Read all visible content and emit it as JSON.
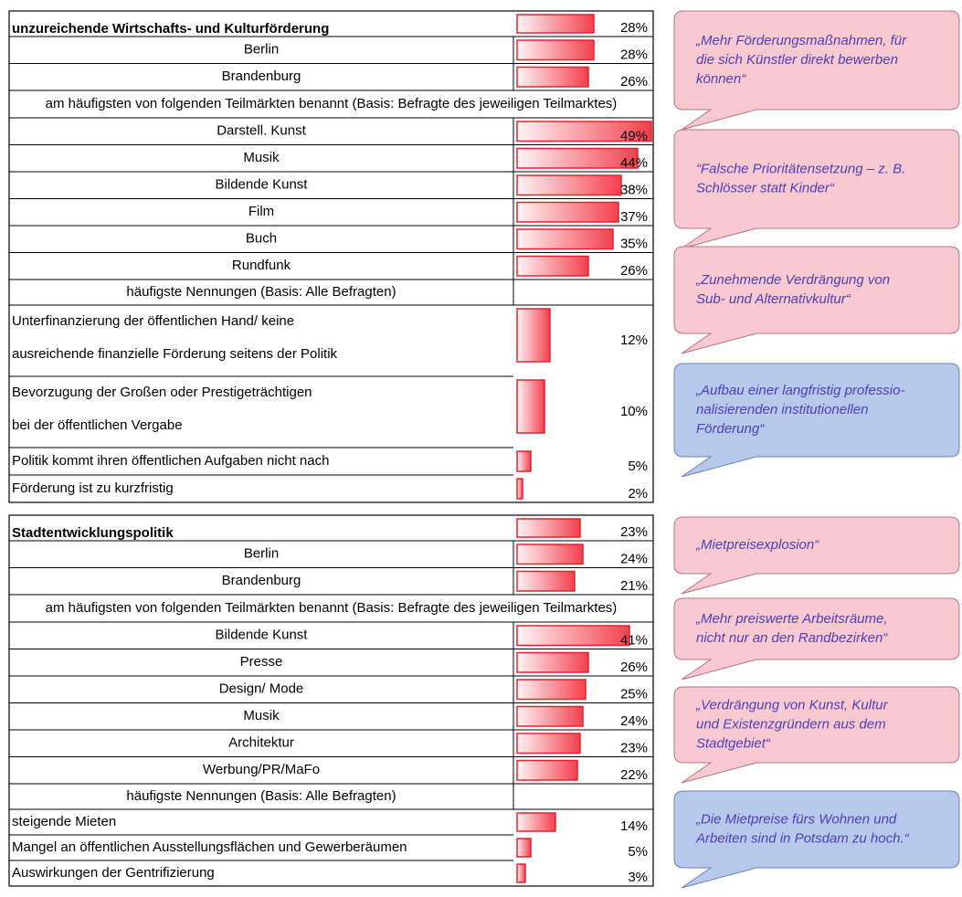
{
  "sections": [
    {
      "title": "unzureichende Wirtschafts- und Kulturförderung",
      "value": 28,
      "value_label": "28%",
      "regions": [
        {
          "name": "Berlin",
          "value": 28,
          "value_label": "28%"
        },
        {
          "name": "Brandenburg",
          "value": 26,
          "value_label": "26%"
        }
      ],
      "submarkets_header": "am häufigsten von folgenden Teilmärkten benannt (Basis: Befragte des jeweiligen Teilmarktes)",
      "submarkets": [
        {
          "name": "Darstell. Kunst",
          "value": 49,
          "value_label": "49%"
        },
        {
          "name": "Musik",
          "value": 44,
          "value_label": "44%"
        },
        {
          "name": "Bildende Kunst",
          "value": 38,
          "value_label": "38%"
        },
        {
          "name": "Film",
          "value": 37,
          "value_label": "37%"
        },
        {
          "name": "Buch",
          "value": 35,
          "value_label": "35%"
        },
        {
          "name": "Rundfunk",
          "value": 26,
          "value_label": "26%"
        }
      ],
      "mentions_header": "häufigste Nennungen (Basis: Alle Befragten)",
      "mentions": [
        {
          "lines": [
            "Unterfinanzierung der öffentlichen Hand/ keine",
            "ausreichende finanzielle Förderung seitens der Politik"
          ],
          "value": 12,
          "value_label": "12%"
        },
        {
          "lines": [
            "Bevorzugung der Großen oder Prestigeträchtigen",
            "bei der öffentlichen Vergabe"
          ],
          "value": 10,
          "value_label": "10%"
        },
        {
          "lines": [
            "Politik kommt ihren öffentlichen Aufgaben nicht nach"
          ],
          "value": 5,
          "value_label": "5%"
        },
        {
          "lines": [
            "Förderung ist zu kurzfristig"
          ],
          "value": 2,
          "value_label": "2%"
        }
      ],
      "quotes": [
        {
          "lines": [
            "„Mehr Förderungsmaßnahmen, für",
            "die sich Künstler direkt bewerben",
            "können“"
          ]
        },
        {
          "lines": [
            "“Falsche Prioritätensetzung – z. B.",
            "Schlösser statt Kinder“"
          ]
        },
        {
          "lines": [
            "„Zunehmende Verdrängung von",
            "Sub- und Alternativkultur“"
          ]
        },
        {
          "lines": [
            "„Aufbau einer langfristig professio-",
            "nalisierenden institutionellen",
            "Förderung“"
          ]
        }
      ]
    },
    {
      "title": "Stadtentwicklungspolitik",
      "value": 23,
      "value_label": "23%",
      "regions": [
        {
          "name": "Berlin",
          "value": 24,
          "value_label": "24%"
        },
        {
          "name": "Brandenburg",
          "value": 21,
          "value_label": "21%"
        }
      ],
      "submarkets_header": "am häufigsten von folgenden Teilmärkten benannt (Basis: Befragte des jeweiligen Teilmarktes)",
      "submarkets": [
        {
          "name": "Bildende Kunst",
          "value": 41,
          "value_label": "41%"
        },
        {
          "name": "Presse",
          "value": 26,
          "value_label": "26%"
        },
        {
          "name": "Design/ Mode",
          "value": 25,
          "value_label": "25%"
        },
        {
          "name": "Musik",
          "value": 24,
          "value_label": "24%"
        },
        {
          "name": "Architektur",
          "value": 23,
          "value_label": "23%"
        },
        {
          "name": "Werbung/PR/MaFo",
          "value": 22,
          "value_label": "22%"
        }
      ],
      "mentions_header": "häufigste Nennungen (Basis: Alle Befragten)",
      "mentions": [
        {
          "lines": [
            "steigende Mieten"
          ],
          "value": 14,
          "value_label": "14%"
        },
        {
          "lines": [
            "Mangel an öffentlichen Ausstellungsflächen und Gewerberäumen"
          ],
          "value": 5,
          "value_label": "5%"
        },
        {
          "lines": [
            "Auswirkungen der Gentrifizierung"
          ],
          "value": 3,
          "value_label": "3%"
        }
      ],
      "quotes": [
        {
          "lines": [
            "„Mietpreisexplosion“"
          ]
        },
        {
          "lines": [
            "„Mehr preiswerte Arbeitsräume,",
            "nicht nur an den Randbezirken“"
          ]
        },
        {
          "lines": [
            "„Verdrängung von Kunst, Kultur",
            "und Existenzgründern aus dem",
            "Stadtgebiet“"
          ]
        },
        {
          "lines": [
            "„Die Mietpreise fürs Wohnen und",
            "Arbeiten sind in Potsdam zu hoch.“"
          ]
        }
      ]
    }
  ]
}
